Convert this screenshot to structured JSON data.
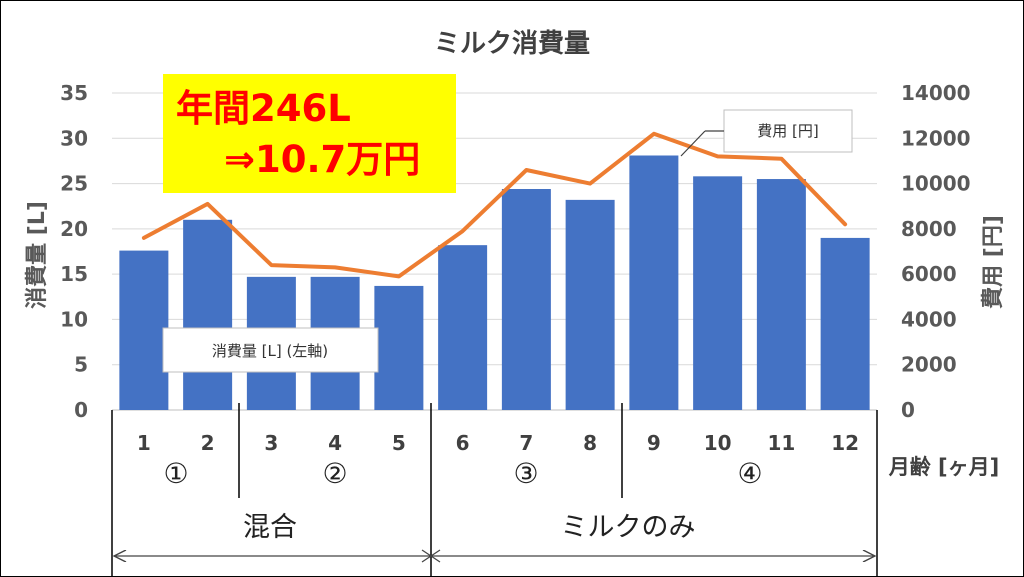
{
  "chart_data": {
    "type": "bar",
    "title": "ミルク消費量",
    "ylabel": "消費量 [L]",
    "y2label": "費用 [円]",
    "xlabel": "月齢 [ヶ月]",
    "categories": [
      "1",
      "2",
      "3",
      "4",
      "5",
      "6",
      "7",
      "8",
      "9",
      "10",
      "11",
      "12"
    ],
    "ylim": [
      0,
      35
    ],
    "y_ticks": [
      "0",
      "5",
      "10",
      "15",
      "20",
      "25",
      "30",
      "35"
    ],
    "y2lim": [
      0,
      14000
    ],
    "y2_ticks": [
      "0",
      "2000",
      "4000",
      "6000",
      "8000",
      "10000",
      "12000",
      "14000"
    ],
    "series": [
      {
        "name": "消費量 [L] (左軸)",
        "type": "bar",
        "axis": "left",
        "color": "#4472c4",
        "values": [
          17.6,
          21.0,
          14.7,
          14.7,
          13.7,
          18.2,
          24.4,
          23.2,
          28.1,
          25.8,
          25.5,
          19.0
        ]
      },
      {
        "name": "費用 [円]",
        "type": "line",
        "axis": "right",
        "color": "#ed7d31",
        "values": [
          7600,
          9100,
          6400,
          6300,
          5900,
          7900,
          10600,
          10000,
          12200,
          11200,
          11100,
          8200
        ]
      }
    ],
    "annotation": {
      "line1": "年間246L",
      "line2": "⇒10.7万円",
      "color": "#ff0000",
      "background": "#ffff00"
    },
    "phases": [
      {
        "label": "①",
        "months": [
          1,
          2
        ]
      },
      {
        "label": "②",
        "months": [
          3,
          5
        ]
      },
      {
        "label": "③",
        "months": [
          6,
          8
        ]
      },
      {
        "label": "④",
        "months": [
          9,
          12
        ]
      }
    ],
    "groups": [
      {
        "label": "混合",
        "months": [
          1,
          5
        ]
      },
      {
        "label": "ミルクのみ",
        "months": [
          6,
          12
        ]
      }
    ],
    "grid": true,
    "colors": {
      "grid": "#d9d9d9",
      "axis_text": "#595959"
    }
  }
}
